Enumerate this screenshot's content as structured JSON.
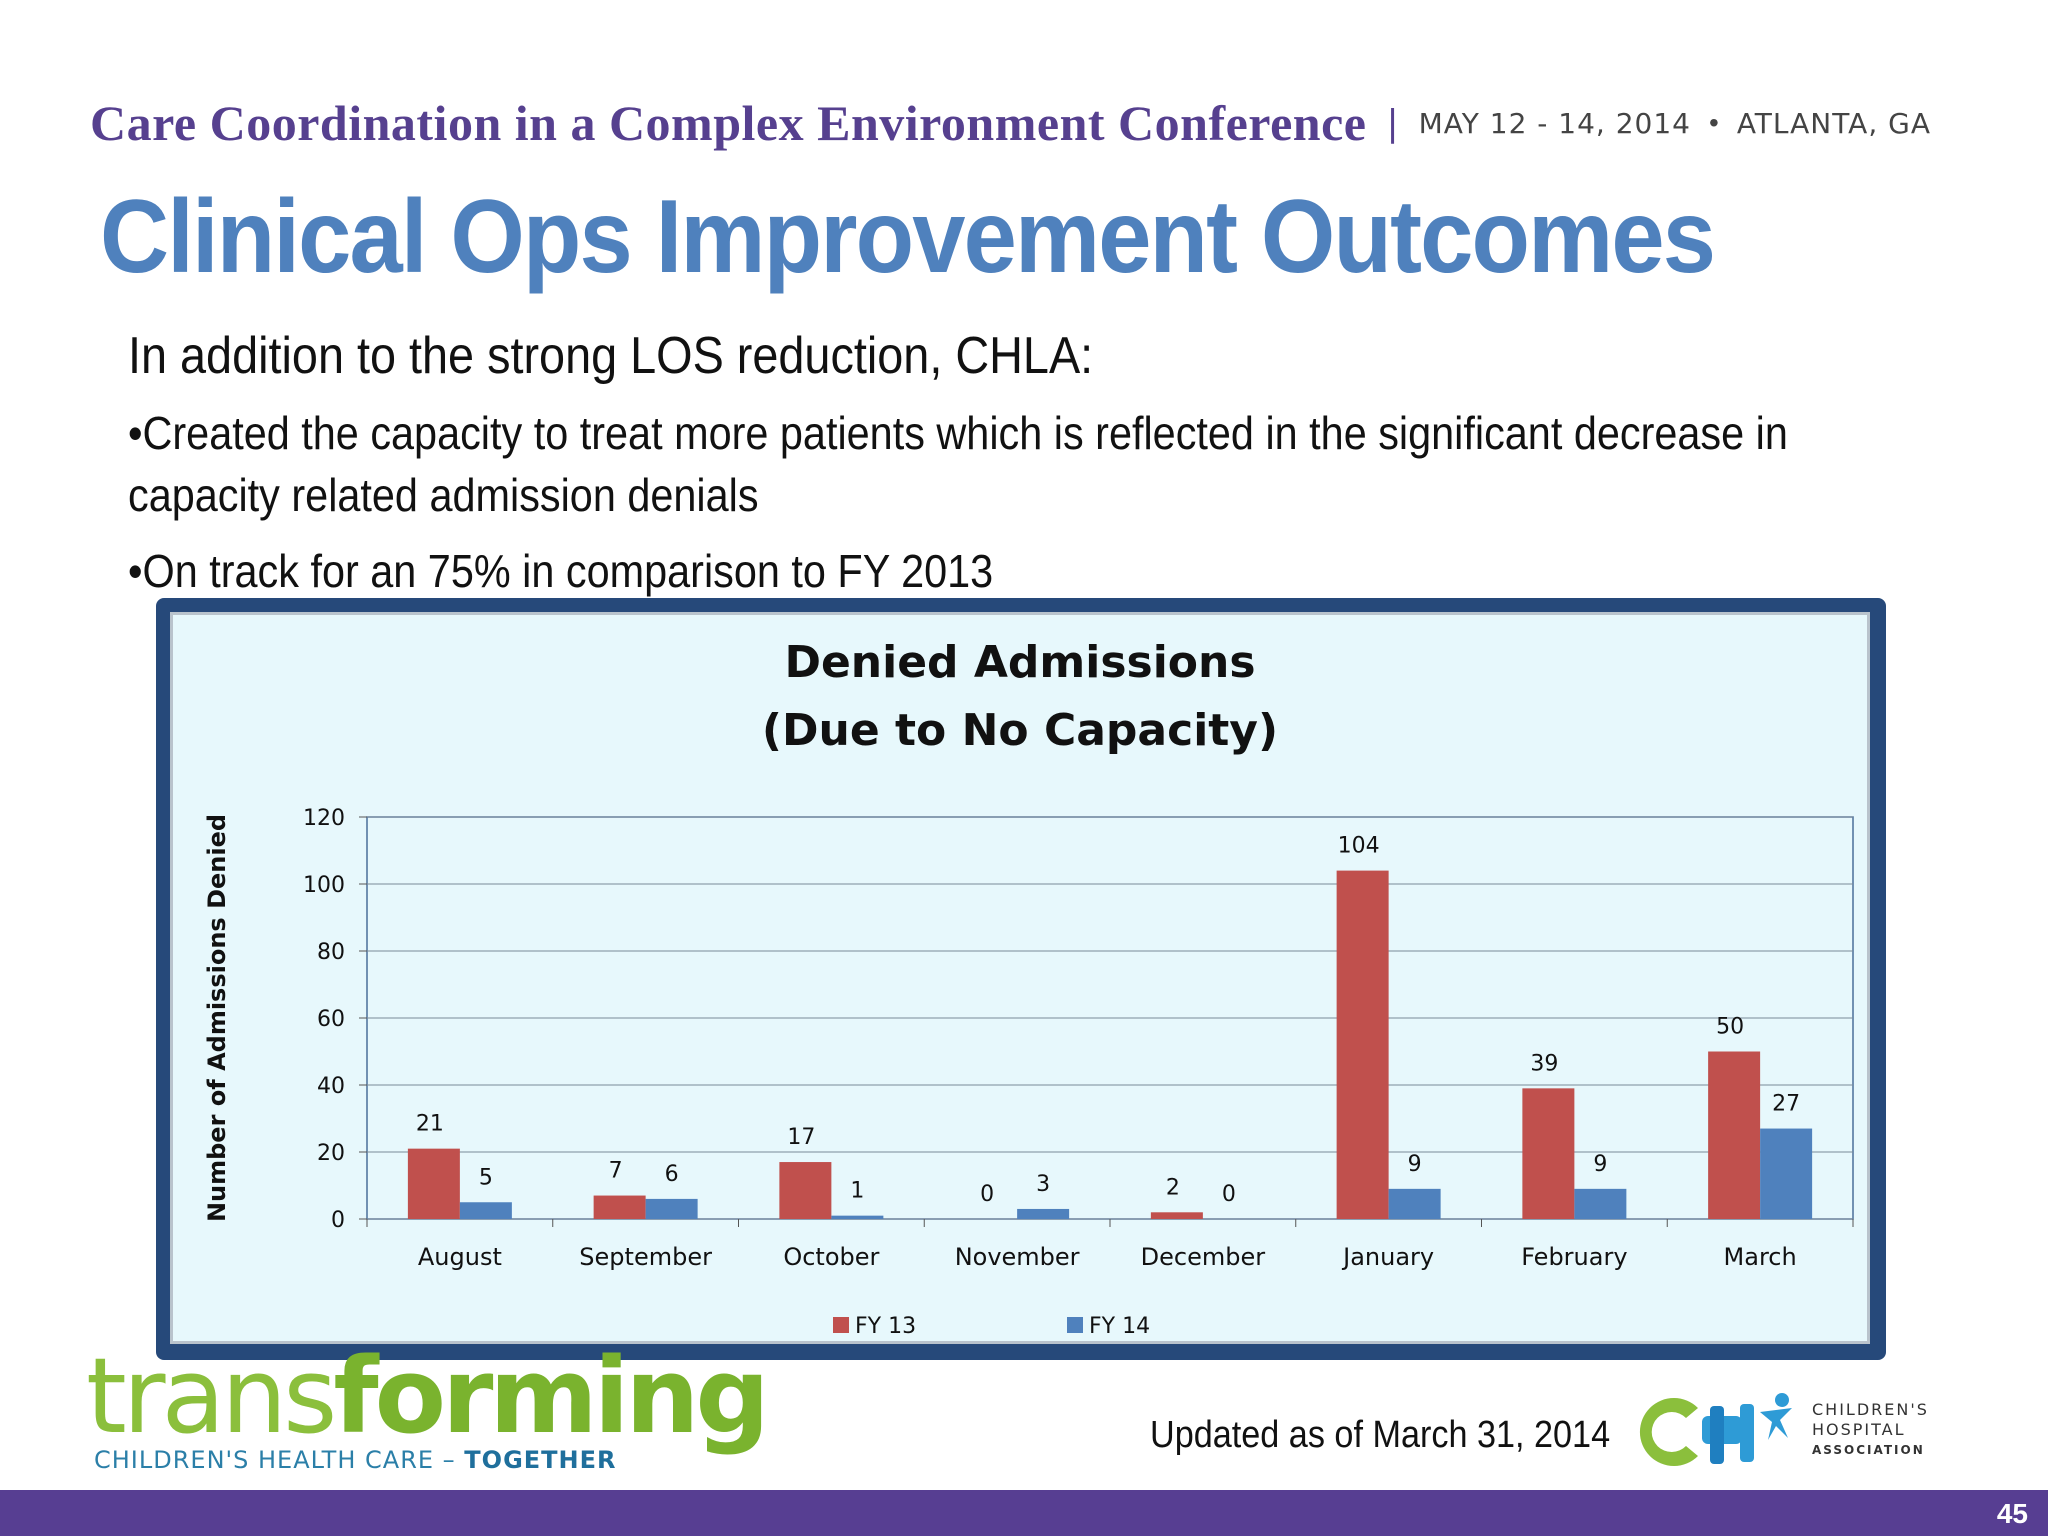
{
  "header": {
    "conference": "Care Coordination in a Complex Environment Conference",
    "separator": "|",
    "dates": "MAY 12 - 14, 2014",
    "dot": "•",
    "location": "ATLANTA, GA"
  },
  "slide": {
    "title": "Clinical Ops Improvement Outcomes",
    "intro": "In addition to the strong LOS reduction, CHLA:",
    "bullet1_line1": "•Created the capacity to treat more patients which is reflected in the significant decrease in",
    "bullet1_line2": "capacity related admission denials",
    "bullet2": "•On track for an 75% in comparison to FY 2013"
  },
  "chart_data": {
    "type": "bar",
    "title_lines": [
      "Denied Admissions",
      "(Due to No Capacity)"
    ],
    "xlabel": "",
    "ylabel": "Number of Admissions Denied",
    "ylim": [
      0,
      120
    ],
    "yticks": [
      0,
      20,
      40,
      60,
      80,
      100,
      120
    ],
    "grid": true,
    "legend_position": "bottom",
    "categories": [
      "August",
      "September",
      "October",
      "November",
      "December",
      "January",
      "February",
      "March"
    ],
    "series": [
      {
        "name": "FY 13",
        "color": "#c0504d",
        "values": [
          21,
          7,
          17,
          0,
          2,
          104,
          39,
          50
        ]
      },
      {
        "name": "FY 14",
        "color": "#4f81bd",
        "values": [
          5,
          6,
          1,
          3,
          0,
          9,
          9,
          27
        ]
      }
    ]
  },
  "footer": {
    "brand_light": "trans",
    "brand_bold": "forming",
    "tagline_main": "CHILDREN'S HEALTH CARE – ",
    "tagline_bold": "TOGETHER",
    "updated": "Updated as of  March 31, 2014",
    "cha_line1": "CHILDREN'S",
    "cha_line2": "HOSPITAL",
    "cha_line3": "ASSOCIATION",
    "page_number": "45",
    "colors": {
      "purple": "#573e92",
      "green": "#8bbf3c",
      "blue": "#2b7fa8"
    }
  }
}
